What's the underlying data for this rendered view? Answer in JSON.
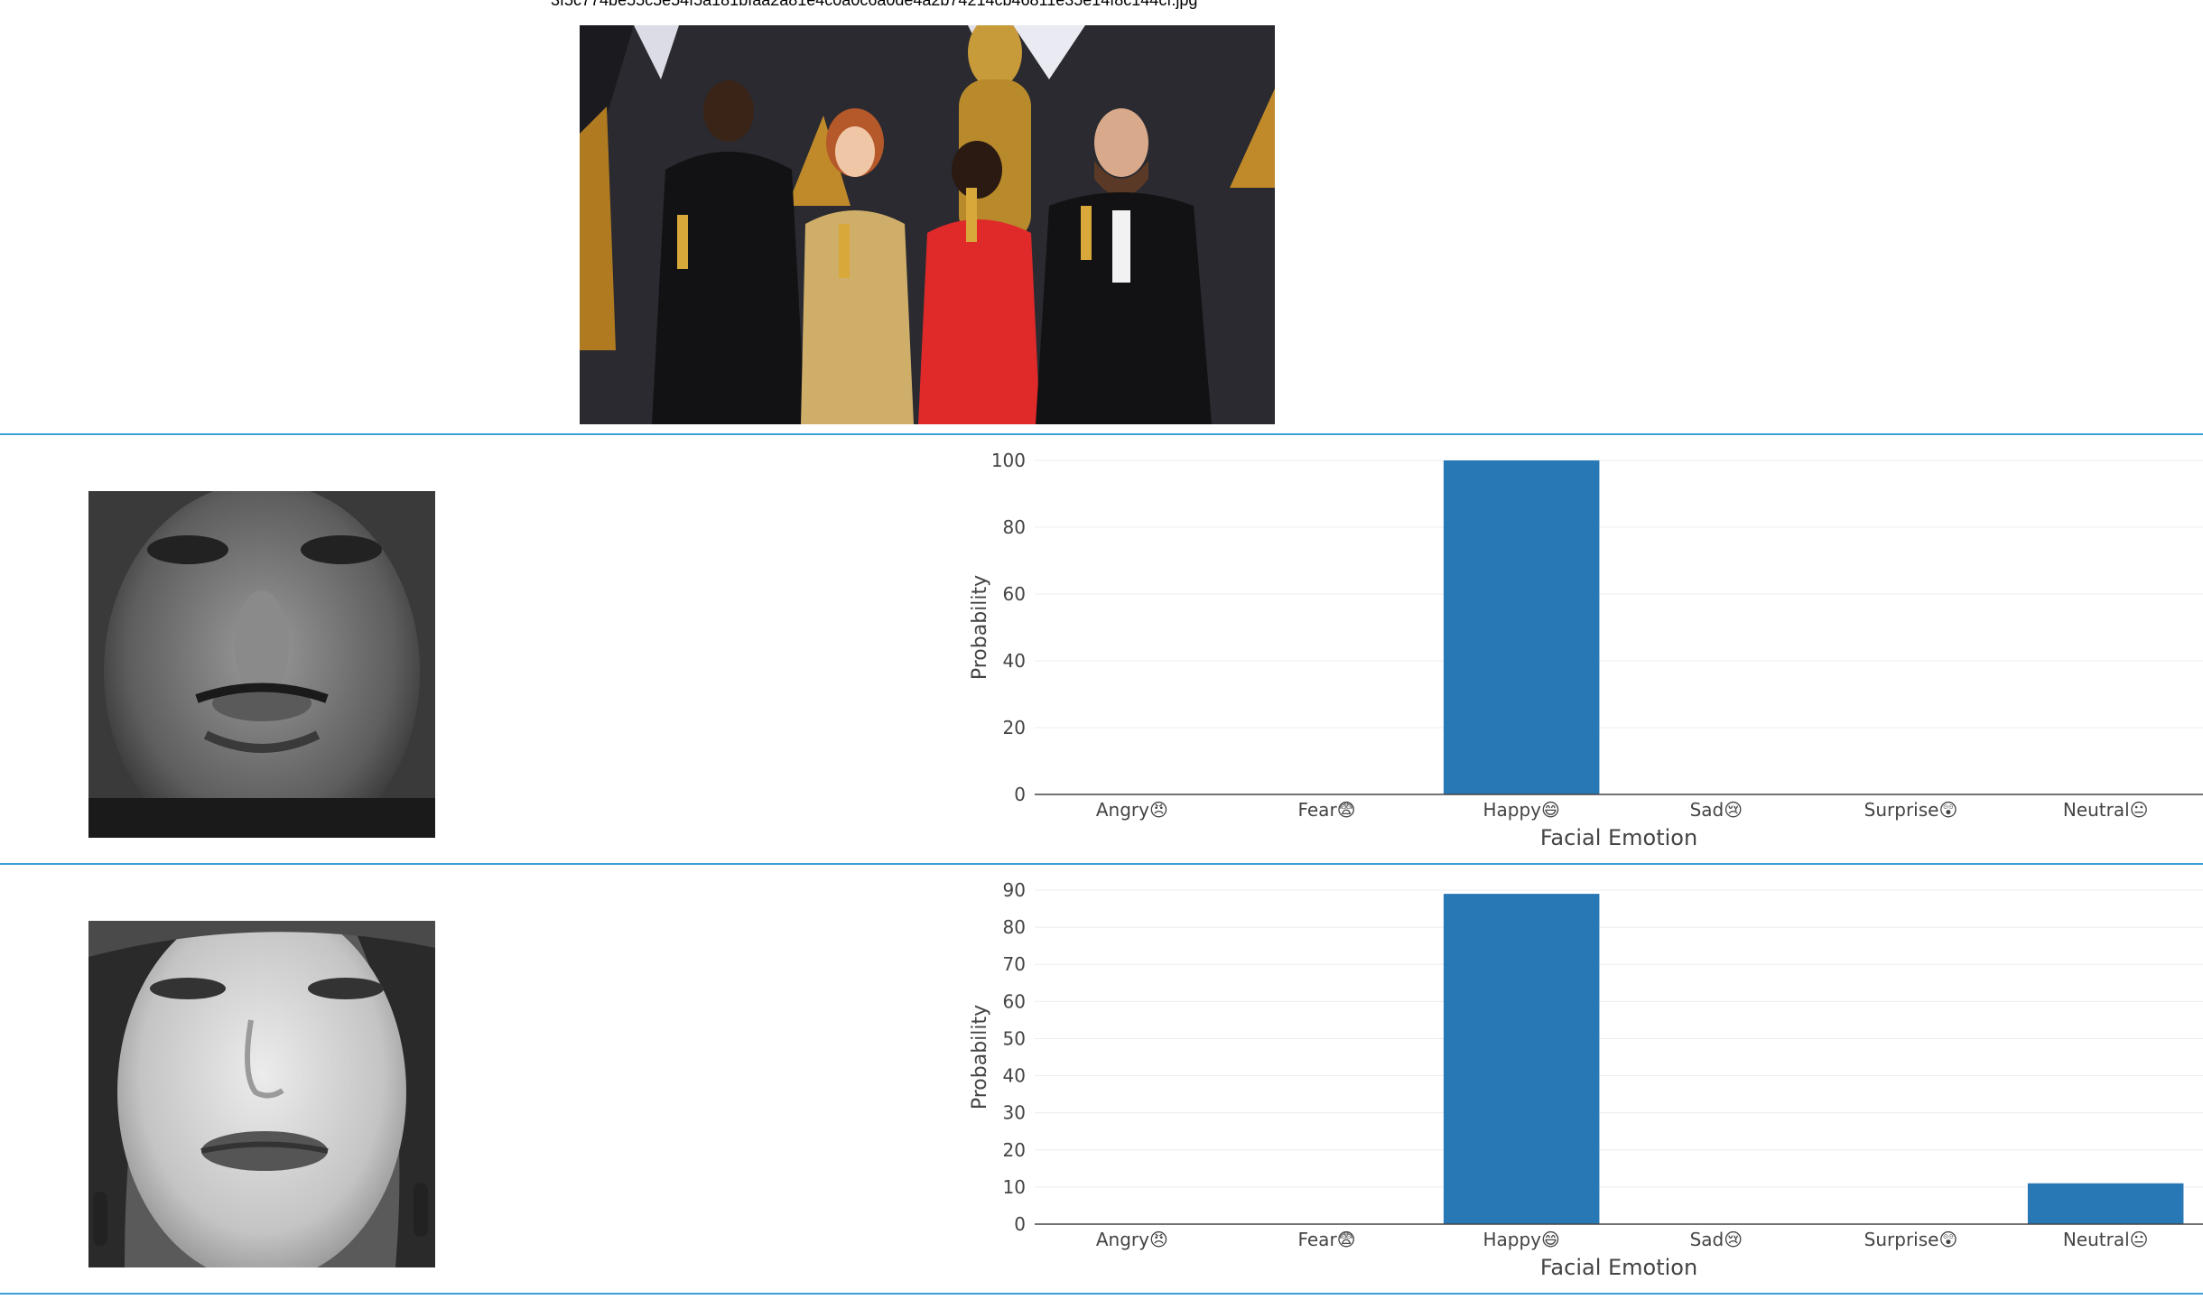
{
  "filename": "3f5c774be55c5e54f5a181bfaa2a81e4c0a0c6a0de4a2b74214cb46811e35e14f8c144cf.jpg",
  "source_image_alt": "Group photo of four award winners holding golden statuettes",
  "faces": [
    {
      "face_alt": "Cropped grayscale face 1",
      "chart_data": {
        "type": "bar",
        "categories": [
          "Angry😠",
          "Fear😨",
          "Happy😄",
          "Sad😢",
          "Surprise😲",
          "Neutral😐"
        ],
        "values": [
          0,
          0,
          100,
          0,
          0,
          0
        ],
        "xlabel": "Facial Emotion",
        "ylabel": "Probability",
        "ylim": [
          0,
          100
        ],
        "yticks": [
          0,
          20,
          40,
          60,
          80,
          100
        ],
        "color": "#2878b5",
        "grid": true
      }
    },
    {
      "face_alt": "Cropped grayscale face 2",
      "chart_data": {
        "type": "bar",
        "categories": [
          "Angry😠",
          "Fear😨",
          "Happy😄",
          "Sad😢",
          "Surprise😲",
          "Neutral😐"
        ],
        "values": [
          0,
          0,
          89,
          0,
          0,
          11
        ],
        "xlabel": "Facial Emotion",
        "ylabel": "Probability",
        "ylim": [
          0,
          90
        ],
        "yticks": [
          0,
          10,
          20,
          30,
          40,
          50,
          60,
          70,
          80,
          90
        ],
        "color": "#2878b5",
        "grid": true
      }
    }
  ],
  "colors": {
    "separator": "#3a9fd6",
    "bar": "#2878b5"
  }
}
